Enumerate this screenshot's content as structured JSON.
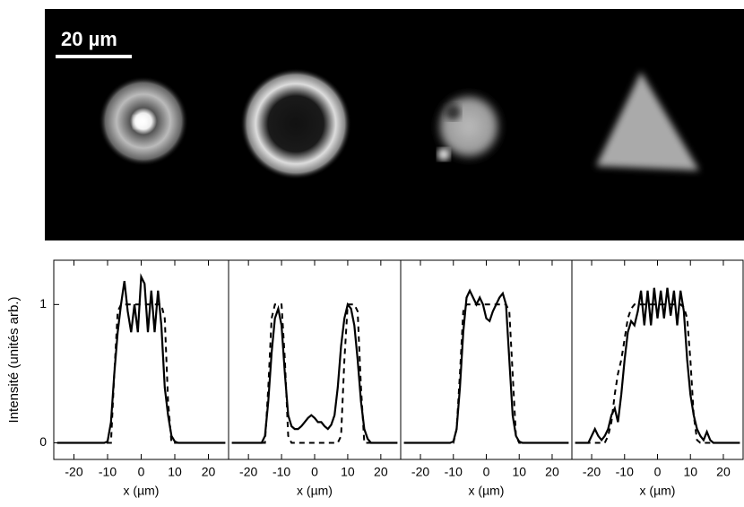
{
  "image": {
    "scale_bar": "20 µm"
  },
  "chart_data": [
    {
      "type": "line",
      "ylabel": "Intensité (unités arb.)",
      "xlabel": "x (µm)",
      "xlim": [
        -26,
        26
      ],
      "ylim": [
        -0.12,
        1.32
      ],
      "xticks": [
        -20,
        -10,
        0,
        10,
        20
      ],
      "yticks": [
        0,
        1
      ],
      "x": [
        -25,
        -24,
        -23,
        -22,
        -21,
        -20,
        -19,
        -18,
        -17,
        -16,
        -15,
        -14,
        -13,
        -12,
        -11,
        -10,
        -9,
        -8,
        -7,
        -6,
        -5,
        -4,
        -3,
        -2,
        -1,
        0,
        1,
        2,
        3,
        4,
        5,
        6,
        7,
        8,
        9,
        10,
        11,
        12,
        13,
        14,
        15,
        16,
        17,
        18,
        19,
        20,
        21,
        22,
        23,
        24,
        25
      ],
      "series": [
        {
          "color": "#000000",
          "linestyle": "solid",
          "values": [
            0,
            0,
            0,
            0,
            0,
            0,
            0,
            0,
            0,
            0,
            0,
            0,
            0,
            0,
            0,
            0.01,
            0.15,
            0.5,
            0.8,
            1.0,
            1.17,
            0.95,
            0.8,
            1.0,
            0.8,
            1.2,
            1.15,
            0.8,
            1.1,
            0.8,
            1.1,
            0.85,
            0.4,
            0.2,
            0.05,
            0.01,
            0,
            0,
            0,
            0,
            0,
            0,
            0,
            0,
            0,
            0,
            0,
            0,
            0,
            0,
            0
          ]
        },
        {
          "color": "#000000",
          "linestyle": "dashed",
          "values": [
            0,
            0,
            0,
            0,
            0,
            0,
            0,
            0,
            0,
            0,
            0,
            0,
            0,
            0,
            0,
            0,
            0,
            0.5,
            0.95,
            1.0,
            1.0,
            1.0,
            1.0,
            1.0,
            1.0,
            1.0,
            1.0,
            1.0,
            1.0,
            1.0,
            1.0,
            1.0,
            0.9,
            0.3,
            0,
            0,
            0,
            0,
            0,
            0,
            0,
            0,
            0,
            0,
            0,
            0,
            0,
            0,
            0,
            0,
            0
          ]
        }
      ]
    },
    {
      "type": "line",
      "xlabel": "x (µm)",
      "xlim": [
        -26,
        26
      ],
      "ylim": [
        -0.12,
        1.32
      ],
      "xticks": [
        -20,
        -10,
        0,
        10,
        20
      ],
      "x": [
        -25,
        -24,
        -23,
        -22,
        -21,
        -20,
        -19,
        -18,
        -17,
        -16,
        -15,
        -14,
        -13,
        -12,
        -11,
        -10,
        -9,
        -8,
        -7,
        -6,
        -5,
        -4,
        -3,
        -2,
        -1,
        0,
        1,
        2,
        3,
        4,
        5,
        6,
        7,
        8,
        9,
        10,
        11,
        12,
        13,
        14,
        15,
        16,
        17,
        18,
        19,
        20,
        21,
        22,
        23,
        24,
        25
      ],
      "series": [
        {
          "color": "#000000",
          "linestyle": "solid",
          "values": [
            0,
            0,
            0,
            0,
            0,
            0,
            0,
            0,
            0,
            0,
            0.05,
            0.3,
            0.65,
            0.9,
            0.97,
            0.85,
            0.5,
            0.2,
            0.12,
            0.1,
            0.1,
            0.12,
            0.15,
            0.18,
            0.2,
            0.18,
            0.15,
            0.15,
            0.12,
            0.1,
            0.13,
            0.2,
            0.4,
            0.7,
            0.9,
            1.0,
            0.97,
            0.85,
            0.6,
            0.3,
            0.1,
            0.03,
            0,
            0,
            0,
            0,
            0,
            0,
            0,
            0,
            0
          ]
        },
        {
          "color": "#000000",
          "linestyle": "dashed",
          "values": [
            0,
            0,
            0,
            0,
            0,
            0,
            0,
            0,
            0,
            0,
            0,
            0.4,
            0.9,
            1.0,
            1.0,
            1.0,
            0.6,
            0.05,
            0,
            0,
            0,
            0,
            0,
            0,
            0,
            0,
            0,
            0,
            0,
            0,
            0,
            0,
            0,
            0.05,
            0.6,
            1.0,
            1.0,
            1.0,
            0.95,
            0.4,
            0,
            0,
            0,
            0,
            0,
            0,
            0,
            0,
            0,
            0,
            0
          ]
        }
      ]
    },
    {
      "type": "line",
      "xlabel": "x (µm)",
      "xlim": [
        -26,
        26
      ],
      "ylim": [
        -0.12,
        1.32
      ],
      "xticks": [
        -20,
        -10,
        0,
        10,
        20
      ],
      "x": [
        -25,
        -24,
        -23,
        -22,
        -21,
        -20,
        -19,
        -18,
        -17,
        -16,
        -15,
        -14,
        -13,
        -12,
        -11,
        -10,
        -9,
        -8,
        -7,
        -6,
        -5,
        -4,
        -3,
        -2,
        -1,
        0,
        1,
        2,
        3,
        4,
        5,
        6,
        7,
        8,
        9,
        10,
        11,
        12,
        13,
        14,
        15,
        16,
        17,
        18,
        19,
        20,
        21,
        22,
        23,
        24,
        25
      ],
      "series": [
        {
          "color": "#000000",
          "linestyle": "solid",
          "values": [
            0,
            0,
            0,
            0,
            0,
            0,
            0,
            0,
            0,
            0,
            0,
            0,
            0,
            0,
            0,
            0.01,
            0.1,
            0.4,
            0.8,
            1.05,
            1.1,
            1.05,
            1.0,
            1.05,
            1.0,
            0.9,
            0.88,
            0.95,
            1.0,
            1.05,
            1.08,
            1.0,
            0.6,
            0.2,
            0.05,
            0.01,
            0,
            0,
            0,
            0,
            0,
            0,
            0,
            0,
            0,
            0,
            0,
            0,
            0,
            0,
            0
          ]
        },
        {
          "color": "#000000",
          "linestyle": "dashed",
          "values": [
            0,
            0,
            0,
            0,
            0,
            0,
            0,
            0,
            0,
            0,
            0,
            0,
            0,
            0,
            0,
            0,
            0.1,
            0.5,
            0.95,
            1.0,
            1.0,
            1.0,
            1.0,
            1.0,
            1.0,
            1.0,
            1.0,
            1.0,
            1.0,
            1.0,
            1.0,
            1.0,
            0.95,
            0.5,
            0.05,
            0,
            0,
            0,
            0,
            0,
            0,
            0,
            0,
            0,
            0,
            0,
            0,
            0,
            0,
            0,
            0
          ]
        }
      ]
    },
    {
      "type": "line",
      "xlabel": "x (µm)",
      "xlim": [
        -26,
        26
      ],
      "ylim": [
        -0.12,
        1.32
      ],
      "xticks": [
        -20,
        -10,
        0,
        10,
        20
      ],
      "x": [
        -25,
        -24,
        -23,
        -22,
        -21,
        -20,
        -19,
        -18,
        -17,
        -16,
        -15,
        -14,
        -13,
        -12,
        -11,
        -10,
        -9,
        -8,
        -7,
        -6,
        -5,
        -4,
        -3,
        -2,
        -1,
        0,
        1,
        2,
        3,
        4,
        5,
        6,
        7,
        8,
        9,
        10,
        11,
        12,
        13,
        14,
        15,
        16,
        17,
        18,
        19,
        20,
        21,
        22,
        23,
        24,
        25
      ],
      "series": [
        {
          "color": "#000000",
          "linestyle": "solid",
          "values": [
            0,
            0,
            0,
            0,
            0,
            0.05,
            0.1,
            0.05,
            0.02,
            0.05,
            0.1,
            0.2,
            0.25,
            0.15,
            0.35,
            0.6,
            0.8,
            0.88,
            0.85,
            0.95,
            1.1,
            0.85,
            1.1,
            0.85,
            1.12,
            0.9,
            1.1,
            0.9,
            1.12,
            0.92,
            1.1,
            0.85,
            1.1,
            0.95,
            0.6,
            0.35,
            0.2,
            0.1,
            0.05,
            0.02,
            0.08,
            0.02,
            0,
            0,
            0,
            0,
            0,
            0,
            0,
            0,
            0
          ]
        },
        {
          "color": "#000000",
          "linestyle": "dashed",
          "values": [
            0,
            0,
            0,
            0,
            0,
            0,
            0,
            0,
            0,
            0,
            0.05,
            0.15,
            0.35,
            0.5,
            0.6,
            0.75,
            0.9,
            0.97,
            1.0,
            1.0,
            1.0,
            1.0,
            1.0,
            1.0,
            1.0,
            1.0,
            1.0,
            1.0,
            1.0,
            1.0,
            1.0,
            1.0,
            1.0,
            0.98,
            0.9,
            0.6,
            0.2,
            0.02,
            0,
            0,
            0,
            0,
            0,
            0,
            0,
            0,
            0,
            0,
            0,
            0,
            0
          ]
        }
      ]
    }
  ]
}
